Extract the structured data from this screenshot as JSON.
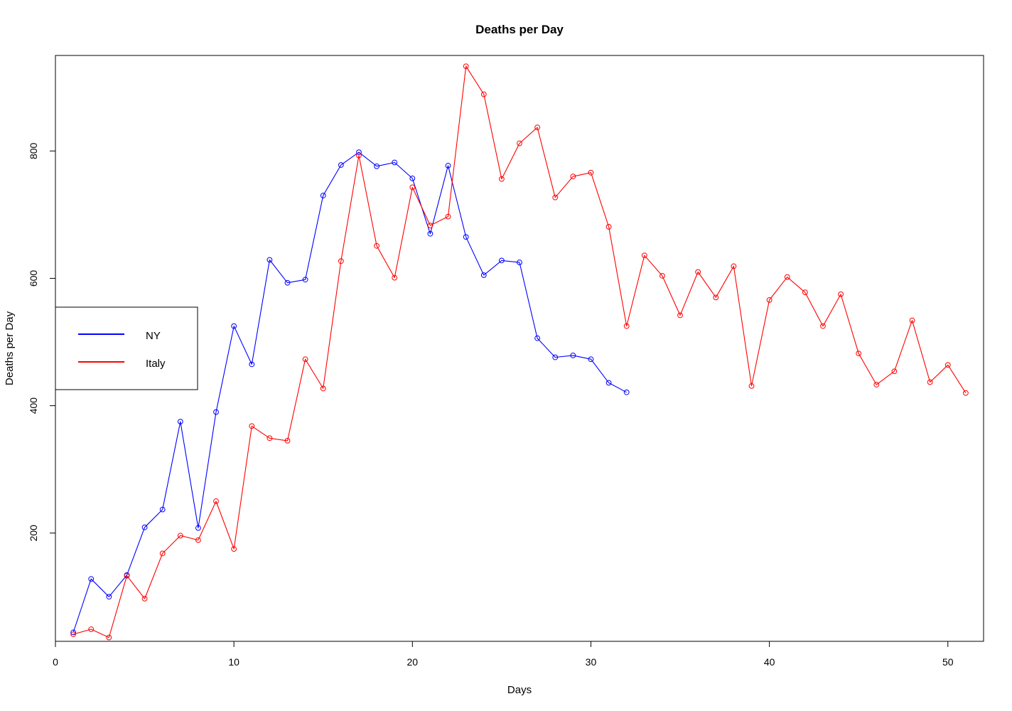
{
  "chart_data": {
    "type": "line",
    "title": "Deaths per Day",
    "xlabel": "Days",
    "ylabel": "Deaths per Day",
    "xlim": [
      0,
      52
    ],
    "ylim": [
      30,
      950
    ],
    "x_ticks": [
      0,
      10,
      20,
      30,
      40,
      50
    ],
    "y_ticks": [
      200,
      400,
      600,
      800
    ],
    "grid": false,
    "markers": "open-circle",
    "legend": {
      "placement": "left"
    },
    "series": [
      {
        "name": "NY",
        "color": "#0000ff",
        "x": [
          1,
          2,
          3,
          4,
          5,
          6,
          7,
          8,
          9,
          10,
          11,
          12,
          13,
          14,
          15,
          16,
          17,
          18,
          19,
          20,
          21,
          22,
          23,
          24,
          25,
          26,
          27,
          28,
          29,
          30,
          31,
          32
        ],
        "values": [
          44,
          128,
          100,
          134,
          209,
          237,
          375,
          208,
          390,
          525,
          465,
          629,
          593,
          598,
          730,
          778,
          798,
          776,
          782,
          757,
          670,
          777,
          665,
          605,
          628,
          625,
          506,
          476,
          479,
          473,
          436,
          421
        ]
      },
      {
        "name": "Italy",
        "color": "#ff0000",
        "x": [
          1,
          2,
          3,
          4,
          5,
          6,
          7,
          8,
          9,
          10,
          11,
          12,
          13,
          14,
          15,
          16,
          17,
          18,
          19,
          20,
          21,
          22,
          23,
          24,
          25,
          26,
          27,
          28,
          29,
          30,
          31,
          32,
          33,
          34,
          35,
          36,
          37,
          38,
          39,
          40,
          41,
          42,
          43,
          44,
          45,
          46,
          47,
          48,
          49,
          50,
          51
        ],
        "values": [
          41,
          49,
          36,
          133,
          97,
          168,
          196,
          189,
          250,
          175,
          368,
          349,
          345,
          473,
          427,
          627,
          793,
          651,
          601,
          743,
          683,
          697,
          933,
          889,
          756,
          812,
          837,
          727,
          760,
          766,
          681,
          525,
          636,
          604,
          542,
          610,
          570,
          619,
          431,
          566,
          602,
          578,
          525,
          575,
          482,
          433,
          454,
          534,
          437,
          464,
          420
        ]
      }
    ]
  }
}
